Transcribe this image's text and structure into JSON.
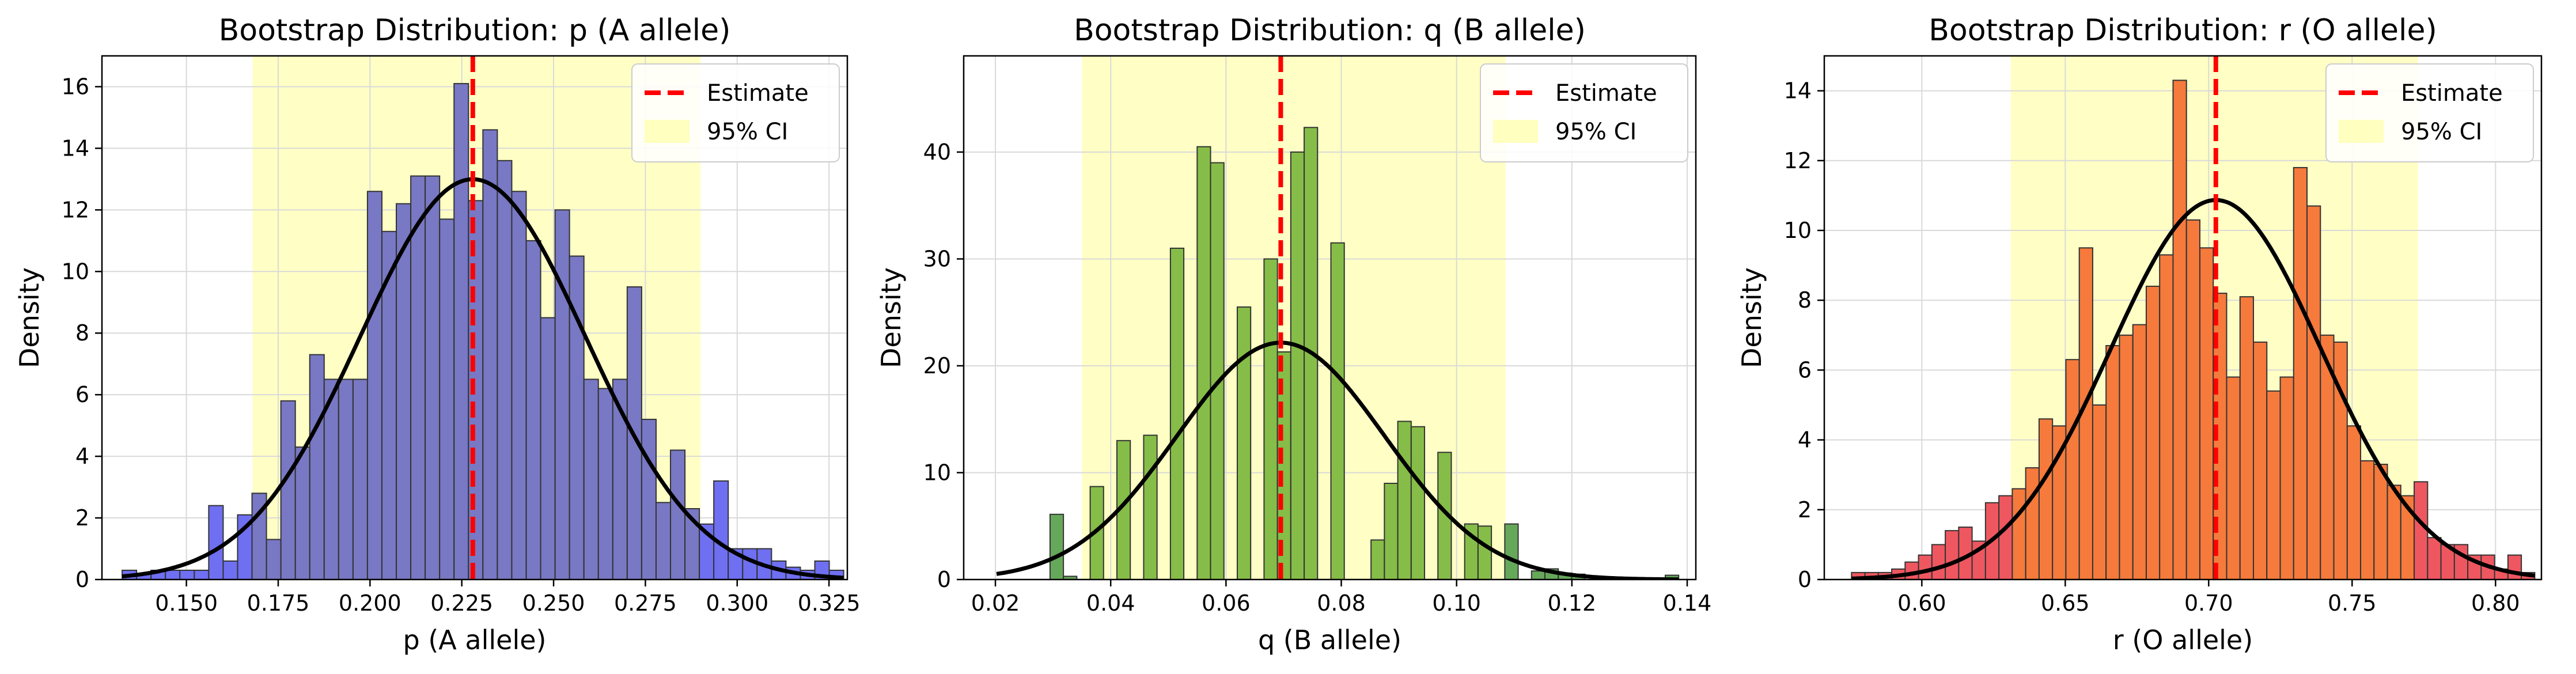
{
  "figure": {
    "background": "#ffffff"
  },
  "colors": {
    "estimate_line": "#ff0000",
    "ci_band": "#ffffbf",
    "normal_curve": "#000000",
    "grid": "#d9d9d9",
    "bar_edge": "#333333"
  },
  "chart_data": [
    {
      "type": "bar",
      "title": "Bootstrap Distribution: p (A allele)",
      "xlabel": "p (A allele)",
      "ylabel": "Density",
      "xlim": [
        0.127,
        0.33
      ],
      "ylim": [
        0,
        17
      ],
      "xticks": [
        0.125,
        0.15,
        0.175,
        0.2,
        0.225,
        0.25,
        0.275,
        0.3,
        0.325
      ],
      "xtick_labels": [
        "0.125",
        "0.150",
        "0.175",
        "0.200",
        "0.225",
        "0.250",
        "0.275",
        "0.300",
        "0.325"
      ],
      "yticks": [
        0,
        2,
        4,
        6,
        8,
        10,
        12,
        14,
        16
      ],
      "ytick_labels": [
        "0",
        "2",
        "4",
        "6",
        "8",
        "10",
        "12",
        "14",
        "16"
      ],
      "grid": true,
      "legend_position": "top-right",
      "legend": [
        "Estimate",
        "95% CI"
      ],
      "bar_color": "#7878c4",
      "tail_color": "#6f6ff2",
      "estimate": 0.228,
      "ci": [
        0.168,
        0.29
      ],
      "normal_curve": {
        "mean": 0.228,
        "sd": 0.0307
      },
      "bins": {
        "start": 0.1325,
        "width": 0.00393
      },
      "values": [
        0.3,
        0.2,
        0.3,
        0.3,
        0.3,
        0.3,
        2.4,
        0.6,
        2.1,
        2.8,
        1.3,
        5.8,
        4.3,
        7.3,
        6.5,
        6.5,
        6.5,
        12.6,
        11.3,
        12.2,
        13.1,
        13.1,
        11.7,
        16.1,
        12.3,
        14.6,
        13.6,
        12.6,
        11.0,
        8.5,
        12.0,
        10.5,
        6.5,
        6.2,
        6.5,
        9.5,
        5.2,
        2.5,
        4.2,
        2.3,
        1.8,
        3.2,
        1.0,
        1.0,
        1.0,
        0.6,
        0.4,
        0.3,
        0.6,
        0.3
      ]
    },
    {
      "type": "bar",
      "title": "Bootstrap Distribution: q (B allele)",
      "xlabel": "q (B allele)",
      "ylabel": "Density",
      "xlim": [
        0.0145,
        0.1415
      ],
      "ylim": [
        0,
        49
      ],
      "xticks": [
        0.02,
        0.04,
        0.06,
        0.08,
        0.1,
        0.12,
        0.14
      ],
      "xtick_labels": [
        "0.02",
        "0.04",
        "0.06",
        "0.08",
        "0.10",
        "0.12",
        "0.14"
      ],
      "yticks": [
        0,
        10,
        20,
        30,
        40
      ],
      "ytick_labels": [
        "0",
        "10",
        "20",
        "30",
        "40"
      ],
      "grid": true,
      "legend_position": "top-right",
      "legend": [
        "Estimate",
        "95% CI"
      ],
      "bar_color": "#86bd48",
      "tail_color": "#66a85a",
      "estimate": 0.0695,
      "ci": [
        0.035,
        0.1085
      ],
      "normal_curve": {
        "mean": 0.0695,
        "sd": 0.018
      },
      "bins": {
        "start": 0.0202,
        "width": 0.00232
      },
      "values": [
        0,
        0,
        0,
        0,
        6.1,
        0.3,
        0,
        8.7,
        0,
        13.0,
        0,
        13.5,
        0,
        31.0,
        0,
        40.5,
        39.0,
        0,
        25.5,
        0,
        30.0,
        21.3,
        40.0,
        42.3,
        0,
        31.5,
        0,
        0,
        3.7,
        9.0,
        14.8,
        14.3,
        0,
        11.9,
        0,
        5.2,
        5.0,
        0,
        5.2,
        0,
        0.8,
        1.0,
        0.6,
        0.5,
        0,
        0,
        0,
        0,
        0,
        0,
        0.4
      ]
    },
    {
      "type": "bar",
      "title": "Bootstrap Distribution: r (O allele)",
      "xlabel": "r (O allele)",
      "ylabel": "Density",
      "xlim": [
        0.566,
        0.816
      ],
      "ylim": [
        0,
        15
      ],
      "xticks": [
        0.6,
        0.65,
        0.7,
        0.75,
        0.8
      ],
      "xtick_labels": [
        "0.60",
        "0.65",
        "0.70",
        "0.75",
        "0.80"
      ],
      "yticks": [
        0,
        2,
        4,
        6,
        8,
        10,
        12,
        14
      ],
      "ytick_labels": [
        "0",
        "2",
        "4",
        "6",
        "8",
        "10",
        "12",
        "14"
      ],
      "grid": true,
      "legend_position": "top-right",
      "legend": [
        "Estimate",
        "95% CI"
      ],
      "bar_color": "#f57a3c",
      "tail_color": "#ef5760",
      "estimate": 0.7025,
      "ci": [
        0.631,
        0.773
      ],
      "normal_curve": {
        "mean": 0.7025,
        "sd": 0.0367
      },
      "bins": {
        "start": 0.5755,
        "width": 0.00467
      },
      "values": [
        0.2,
        0.2,
        0.2,
        0.3,
        0.5,
        0.7,
        1.0,
        1.4,
        1.5,
        1.1,
        2.2,
        2.4,
        2.6,
        3.2,
        4.6,
        4.4,
        6.3,
        9.5,
        5.0,
        6.7,
        7.0,
        7.3,
        8.4,
        9.3,
        14.3,
        10.3,
        9.5,
        8.2,
        5.8,
        8.1,
        6.8,
        5.4,
        5.8,
        11.8,
        10.7,
        7.0,
        6.8,
        4.4,
        3.4,
        3.3,
        2.7,
        2.4,
        2.8,
        1.2,
        1.0,
        1.0,
        0.7,
        0.7,
        0.3,
        0.7,
        0.2
      ]
    }
  ]
}
